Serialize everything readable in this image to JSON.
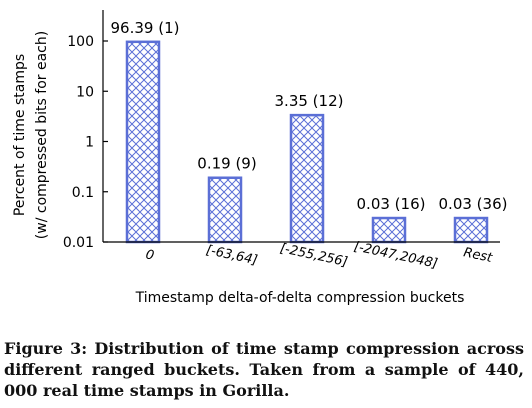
{
  "chart_data": {
    "type": "bar",
    "yscale": "log",
    "ylim": [
      0.01,
      100
    ],
    "yticks": [
      "100",
      "10",
      "1",
      "0.1",
      "0.01"
    ],
    "categories": [
      "0",
      "[-63,64]",
      "[-255,256]",
      "[-2047,2048]",
      "Rest"
    ],
    "values": [
      96.39,
      0.19,
      3.35,
      0.03,
      0.03
    ],
    "bar_labels": [
      "96.39 (1)",
      "0.19 (9)",
      "3.35 (12)",
      "0.03 (16)",
      "0.03 (36)"
    ],
    "ylabel_line1": "Percent of time stamps",
    "ylabel_line2": "(w/ compressed bits for each)",
    "xlabel": "Timestamp delta-of-delta compression buckets",
    "grid": false,
    "bar_pattern": "crosshatch",
    "bar_color": "#5b6fd6"
  },
  "caption": "Figure 3: Distribution of time stamp compression across different ranged buckets. Taken from a sample of 440, 000 real time stamps in Gorilla."
}
